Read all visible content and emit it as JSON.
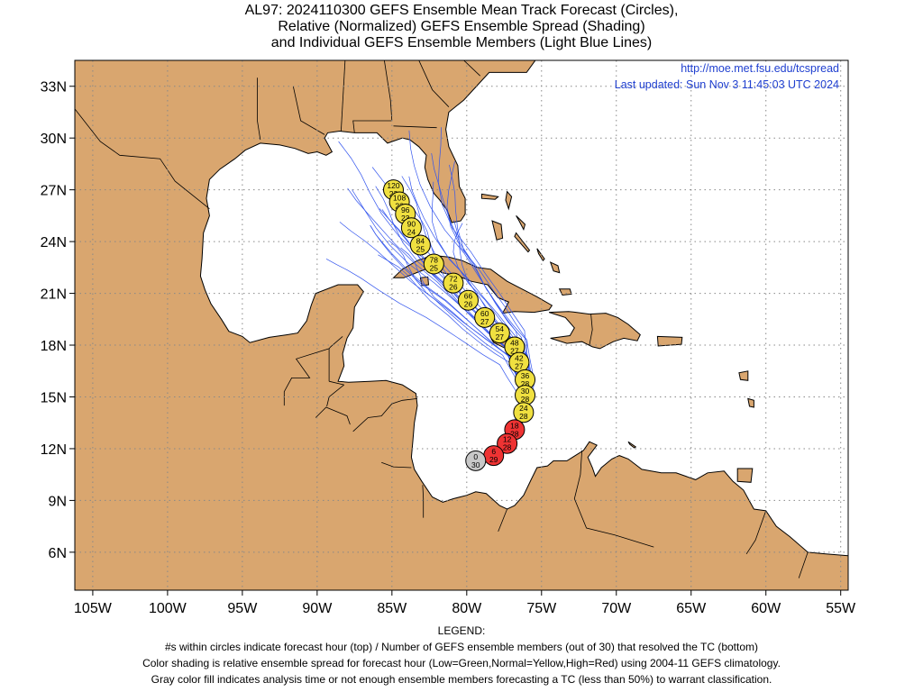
{
  "title": {
    "line1": "AL97: 2024110300 GEFS Ensemble Mean Track Forecast (Circles),",
    "line2": "Relative (Normalized) GEFS Ensemble Spread (Shading)",
    "line3": "and Individual GEFS Ensemble Members (Light Blue Lines)"
  },
  "source_url": "http://moe.met.fsu.edu/tcspread",
  "last_updated": "Last updated: Sun Nov 3 11:45:03 UTC 2024",
  "axes": {
    "lon_ticks": [
      -105,
      -100,
      -95,
      -90,
      -85,
      -80,
      -75,
      -70,
      -65,
      -60,
      -55
    ],
    "lon_labels": [
      "105W",
      "100W",
      "95W",
      "90W",
      "85W",
      "80W",
      "75W",
      "70W",
      "65W",
      "60W",
      "55W"
    ],
    "lat_ticks": [
      6,
      9,
      12,
      15,
      18,
      21,
      24,
      27,
      30,
      33
    ],
    "lat_labels": [
      "6N",
      "9N",
      "12N",
      "15N",
      "18N",
      "21N",
      "24N",
      "27N",
      "30N",
      "33N"
    ],
    "lon_range": [
      -106.2,
      -54.5
    ],
    "lat_range": [
      3.8,
      34.5
    ]
  },
  "colors": {
    "land": "#d9a66f",
    "ocean": "#ffffff",
    "member_tracks": "#3355ee",
    "spread_low": "#33cc33",
    "spread_normal": "#f0e040",
    "spread_high": "#ee3333",
    "analysis": "#c8c8c8"
  },
  "mean_track": [
    {
      "hour": "0",
      "members": "30",
      "lon": -79.4,
      "lat": 11.3,
      "spread": "gray"
    },
    {
      "hour": "6",
      "members": "29",
      "lon": -78.2,
      "lat": 11.6,
      "spread": "high"
    },
    {
      "hour": "12",
      "members": "28",
      "lon": -77.3,
      "lat": 12.3,
      "spread": "high"
    },
    {
      "hour": "18",
      "members": "28",
      "lon": -76.8,
      "lat": 13.1,
      "spread": "high"
    },
    {
      "hour": "24",
      "members": "28",
      "lon": -76.2,
      "lat": 14.1,
      "spread": "normal"
    },
    {
      "hour": "30",
      "members": "28",
      "lon": -76.1,
      "lat": 15.1,
      "spread": "normal"
    },
    {
      "hour": "36",
      "members": "28",
      "lon": -76.1,
      "lat": 16.0,
      "spread": "normal"
    },
    {
      "hour": "42",
      "members": "27",
      "lon": -76.5,
      "lat": 17.0,
      "spread": "normal"
    },
    {
      "hour": "48",
      "members": "27",
      "lon": -76.8,
      "lat": 17.9,
      "spread": "normal"
    },
    {
      "hour": "54",
      "members": "27",
      "lon": -77.8,
      "lat": 18.7,
      "spread": "normal"
    },
    {
      "hour": "60",
      "members": "27",
      "lon": -78.8,
      "lat": 19.6,
      "spread": "normal"
    },
    {
      "hour": "66",
      "members": "26",
      "lon": -79.9,
      "lat": 20.6,
      "spread": "normal"
    },
    {
      "hour": "72",
      "members": "26",
      "lon": -80.9,
      "lat": 21.6,
      "spread": "normal"
    },
    {
      "hour": "78",
      "members": "25",
      "lon": -82.2,
      "lat": 22.7,
      "spread": "normal"
    },
    {
      "hour": "84",
      "members": "25",
      "lon": -83.1,
      "lat": 23.8,
      "spread": "normal"
    },
    {
      "hour": "90",
      "members": "24",
      "lon": -83.7,
      "lat": 24.8,
      "spread": "normal"
    },
    {
      "hour": "96",
      "members": "23",
      "lon": -84.1,
      "lat": 25.6,
      "spread": "normal"
    },
    {
      "hour": "108",
      "members": "23",
      "lon": -84.5,
      "lat": 26.3,
      "spread": "normal"
    },
    {
      "hour": "120",
      "members": "23",
      "lon": -84.9,
      "lat": 27.0,
      "spread": "normal"
    }
  ],
  "legend": {
    "heading": "LEGEND:",
    "line1": "#s within circles indicate forecast hour (top) / Number of GEFS ensemble members (out of 30) that resolved the TC (bottom)",
    "line2": "Color shading is relative ensemble spread for forecast hour (Low=Green,Normal=Yellow,High=Red) using 2004-11 GEFS climatology.",
    "line3": "Gray color fill indicates analysis time or not enough ensemble members forecasting a TC (less than 50%) to warrant classification."
  }
}
